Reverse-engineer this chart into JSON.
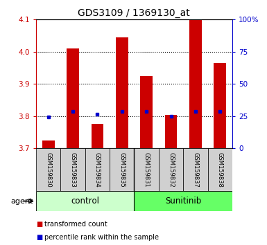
{
  "title": "GDS3109 / 1369130_at",
  "samples": [
    "GSM159830",
    "GSM159833",
    "GSM159834",
    "GSM159835",
    "GSM159831",
    "GSM159832",
    "GSM159837",
    "GSM159838"
  ],
  "red_values": [
    3.725,
    4.01,
    3.775,
    4.045,
    3.925,
    3.803,
    4.1,
    3.965
  ],
  "blue_values": [
    3.797,
    3.815,
    3.805,
    3.815,
    3.815,
    3.799,
    3.815,
    3.815
  ],
  "groups": [
    {
      "label": "control",
      "start": 0,
      "end": 4,
      "color": "#ccffcc"
    },
    {
      "label": "Sunitinib",
      "start": 4,
      "end": 8,
      "color": "#66ff66"
    }
  ],
  "ylim": [
    3.7,
    4.1
  ],
  "yticks_left": [
    3.7,
    3.8,
    3.9,
    4.0,
    4.1
  ],
  "yticks_right": [
    0,
    25,
    50,
    75,
    100
  ],
  "yticks_right_labels": [
    "0",
    "25",
    "50",
    "75",
    "100%"
  ],
  "left_axis_color": "#cc0000",
  "right_axis_color": "#0000cc",
  "bar_color": "#cc0000",
  "dot_color": "#0000cc",
  "agent_label": "agent",
  "legend_items": [
    {
      "color": "#cc0000",
      "label": "transformed count"
    },
    {
      "color": "#0000cc",
      "label": "percentile rank within the sample"
    }
  ],
  "grid_color": "black",
  "sample_area_color": "#d0d0d0",
  "bar_width": 0.5,
  "figsize": [
    3.85,
    3.54
  ],
  "dpi": 100
}
